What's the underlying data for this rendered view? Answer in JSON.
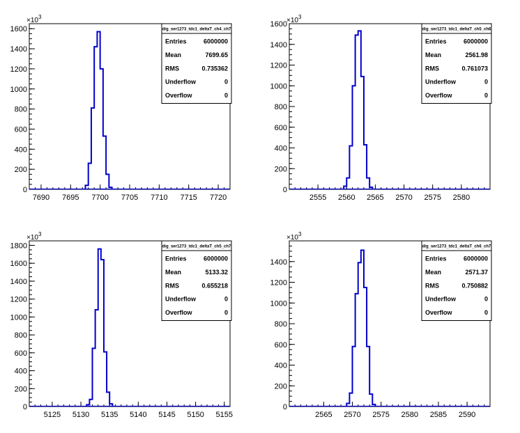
{
  "line_color": "#0000cc",
  "chart_data": [
    {
      "type": "histogram",
      "title": "dig_ser1273_tdc1_deltaT_ch4_ch7",
      "xlim": [
        7688,
        7722
      ],
      "ylim": [
        0,
        1650
      ],
      "y_multiplier_label": "×10",
      "y_multiplier_exp": "3",
      "xticks": [
        "7690",
        "7695",
        "7700",
        "7705",
        "7710",
        "7715",
        "7720"
      ],
      "yticks": [
        "0",
        "200",
        "400",
        "600",
        "800",
        "1000",
        "1200",
        "1400",
        "1600"
      ],
      "bin_width": 0.5,
      "bins": [
        {
          "x": 7697.5,
          "y": 40
        },
        {
          "x": 7698.0,
          "y": 260
        },
        {
          "x": 7698.5,
          "y": 810
        },
        {
          "x": 7699.0,
          "y": 1420
        },
        {
          "x": 7699.5,
          "y": 1570
        },
        {
          "x": 7700.0,
          "y": 1200
        },
        {
          "x": 7700.5,
          "y": 530
        },
        {
          "x": 7701.0,
          "y": 150
        },
        {
          "x": 7701.5,
          "y": 20
        }
      ],
      "stats": [
        {
          "label": "Entries",
          "value": "6000000"
        },
        {
          "label": "Mean",
          "value": "7699.65"
        },
        {
          "label": "RMS",
          "value": "0.735362"
        },
        {
          "label": "Underflow",
          "value": "0"
        },
        {
          "label": "Overflow",
          "value": "0"
        }
      ]
    },
    {
      "type": "histogram",
      "title": "dig_ser1273_tdc1_deltaT_ch5_ch6",
      "xlim": [
        2550,
        2585
      ],
      "ylim": [
        0,
        1600
      ],
      "y_multiplier_label": "×10",
      "y_multiplier_exp": "3",
      "xticks": [
        "2555",
        "2560",
        "2565",
        "2570",
        "2575",
        "2580"
      ],
      "yticks": [
        "0",
        "200",
        "400",
        "600",
        "800",
        "1000",
        "1200",
        "1400",
        "1600"
      ],
      "bin_width": 0.5,
      "bins": [
        {
          "x": 2559.5,
          "y": 30
        },
        {
          "x": 2560.0,
          "y": 110
        },
        {
          "x": 2560.5,
          "y": 420
        },
        {
          "x": 2561.0,
          "y": 1000
        },
        {
          "x": 2561.5,
          "y": 1490
        },
        {
          "x": 2562.0,
          "y": 1530
        },
        {
          "x": 2562.5,
          "y": 1090
        },
        {
          "x": 2563.0,
          "y": 430
        },
        {
          "x": 2563.5,
          "y": 110
        },
        {
          "x": 2564.0,
          "y": 20
        }
      ],
      "stats": [
        {
          "label": "Entries",
          "value": "6000000"
        },
        {
          "label": "Mean",
          "value": "2561.98"
        },
        {
          "label": "RMS",
          "value": "0.761073"
        },
        {
          "label": "Underflow",
          "value": "0"
        },
        {
          "label": "Overflow",
          "value": "0"
        }
      ]
    },
    {
      "type": "histogram",
      "title": "dig_ser1273_tdc1_deltaT_ch5_ch7",
      "xlim": [
        5121,
        5156
      ],
      "ylim": [
        0,
        1850
      ],
      "y_multiplier_label": "×10",
      "y_multiplier_exp": "3",
      "xticks": [
        "5125",
        "5130",
        "5135",
        "5140",
        "5145",
        "5150",
        "5155"
      ],
      "yticks": [
        "0",
        "200",
        "400",
        "600",
        "800",
        "1000",
        "1200",
        "1400",
        "1600",
        "1800"
      ],
      "bin_width": 0.5,
      "bins": [
        {
          "x": 5131.0,
          "y": 20
        },
        {
          "x": 5131.5,
          "y": 80
        },
        {
          "x": 5132.0,
          "y": 650
        },
        {
          "x": 5132.5,
          "y": 1080
        },
        {
          "x": 5133.0,
          "y": 1760
        },
        {
          "x": 5133.5,
          "y": 1640
        },
        {
          "x": 5134.0,
          "y": 610
        },
        {
          "x": 5134.5,
          "y": 160
        },
        {
          "x": 5135.0,
          "y": 30
        }
      ],
      "stats": [
        {
          "label": "Entries",
          "value": "6000000"
        },
        {
          "label": "Mean",
          "value": "5133.32"
        },
        {
          "label": "RMS",
          "value": "0.655218"
        },
        {
          "label": "Underflow",
          "value": "0"
        },
        {
          "label": "Overflow",
          "value": "0"
        }
      ]
    },
    {
      "type": "histogram",
      "title": "dig_ser1273_tdc1_deltaT_ch6_ch7",
      "xlim": [
        2559,
        2594
      ],
      "ylim": [
        0,
        1600
      ],
      "y_multiplier_label": "×10",
      "y_multiplier_exp": "3",
      "xticks": [
        "2565",
        "2570",
        "2575",
        "2580",
        "2585",
        "2590"
      ],
      "yticks": [
        "0",
        "200",
        "400",
        "600",
        "800",
        "1000",
        "1200",
        "1400"
      ],
      "bin_width": 0.5,
      "bins": [
        {
          "x": 2569.0,
          "y": 30
        },
        {
          "x": 2569.5,
          "y": 130
        },
        {
          "x": 2570.0,
          "y": 580
        },
        {
          "x": 2570.5,
          "y": 1090
        },
        {
          "x": 2571.0,
          "y": 1390
        },
        {
          "x": 2571.5,
          "y": 1510
        },
        {
          "x": 2572.0,
          "y": 1150
        },
        {
          "x": 2572.5,
          "y": 580
        },
        {
          "x": 2573.0,
          "y": 120
        },
        {
          "x": 2573.5,
          "y": 20
        }
      ],
      "stats": [
        {
          "label": "Entries",
          "value": "6000000"
        },
        {
          "label": "Mean",
          "value": "2571.37"
        },
        {
          "label": "RMS",
          "value": "0.750882"
        },
        {
          "label": "Underflow",
          "value": "0"
        },
        {
          "label": "Overflow",
          "value": "0"
        }
      ]
    }
  ]
}
